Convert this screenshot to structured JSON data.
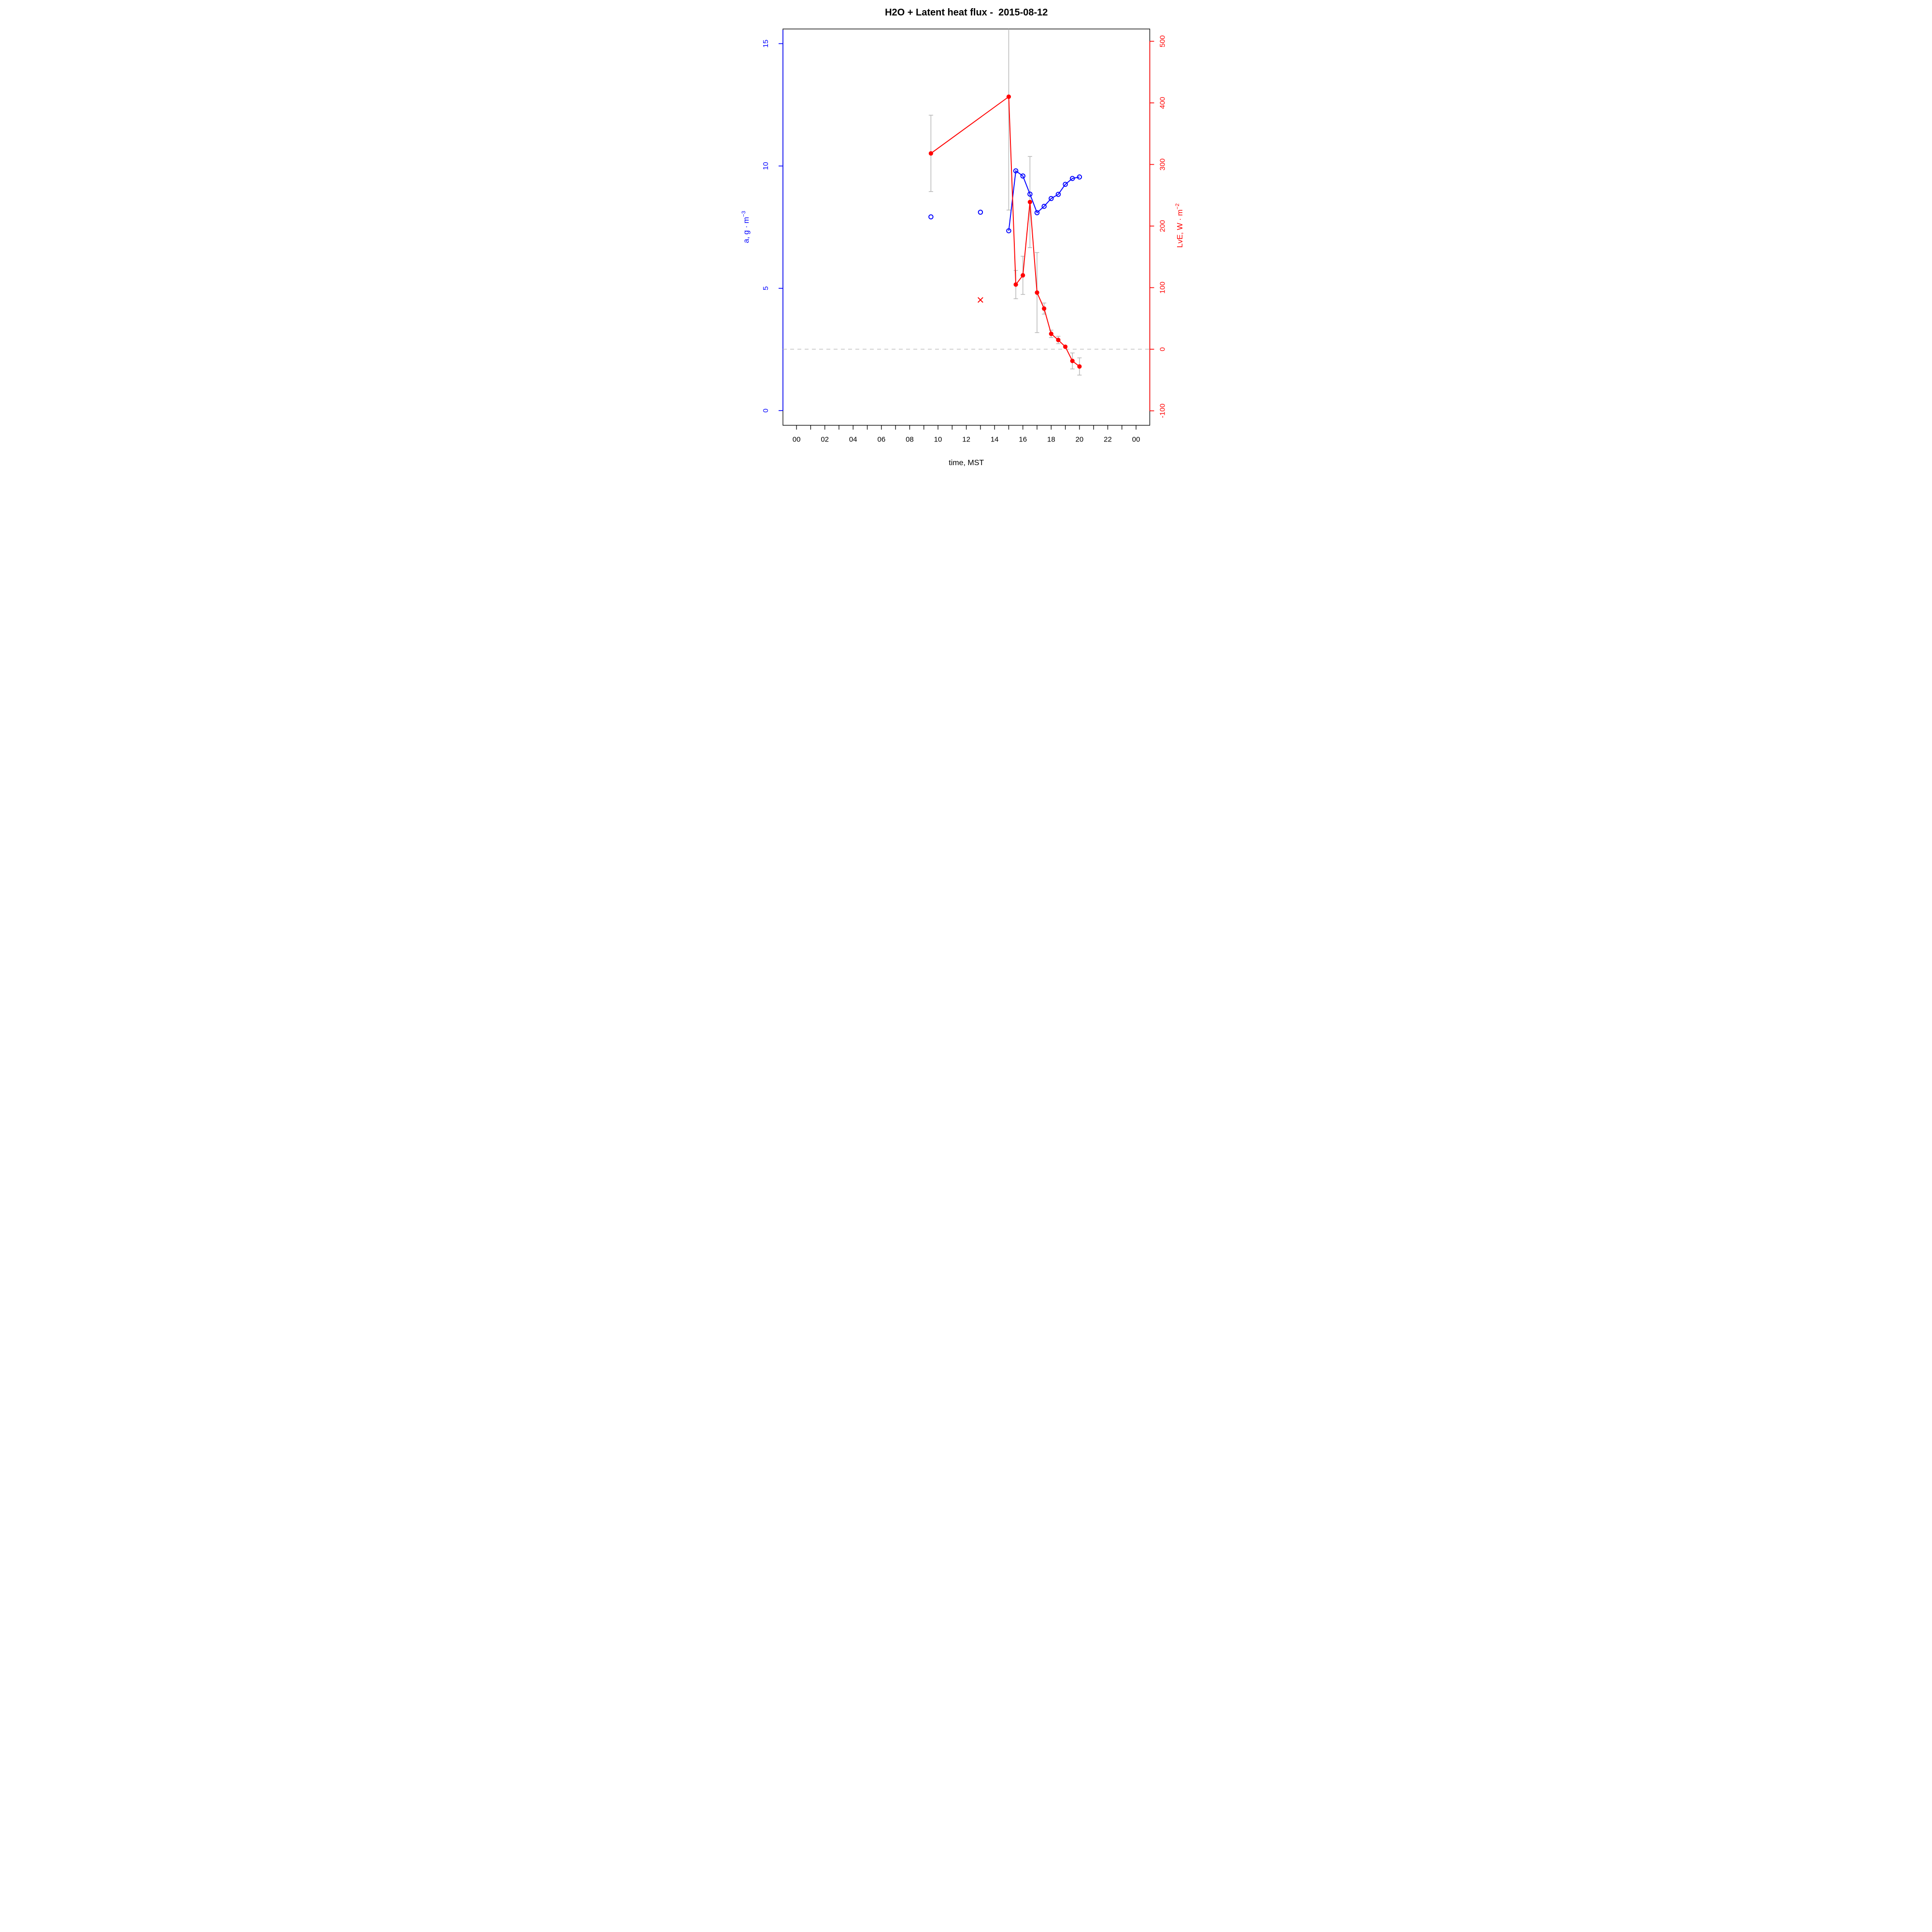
{
  "title": "H2O + Latent heat flux -  2015-08-12",
  "chart_data": {
    "type": "line",
    "title": "H2O + Latent heat flux -  2015-08-12",
    "x_axis": {
      "label": "time, MST",
      "range_hours": [
        -0.96,
        24.97
      ],
      "major_tick_hours": [
        0,
        2,
        4,
        6,
        8,
        10,
        12,
        14,
        16,
        18,
        20,
        22,
        24
      ],
      "major_tick_labels": [
        "00",
        "02",
        "04",
        "06",
        "08",
        "10",
        "12",
        "14",
        "16",
        "18",
        "20",
        "22",
        "00"
      ],
      "minor_tick_hours": [
        1,
        3,
        5,
        7,
        9,
        11,
        13,
        15,
        17,
        19,
        21,
        23
      ],
      "color": "#000000"
    },
    "y_left": {
      "label": "a, g · m⁻³",
      "label_text": "a, g · m",
      "label_sup": "−3",
      "range": [
        -0.6,
        15.6
      ],
      "ticks": [
        0,
        5,
        10,
        15
      ],
      "tick_labels": [
        "0",
        "5",
        "10",
        "15"
      ],
      "color": "#0000ff"
    },
    "y_right": {
      "label": "LvE, W · m⁻²",
      "label_text": "LvE, W · m",
      "label_sup": "−2",
      "range": [
        -123.5,
        520
      ],
      "ticks": [
        -100,
        0,
        100,
        200,
        300,
        400,
        500
      ],
      "tick_labels": [
        "-100",
        "0",
        "100",
        "200",
        "300",
        "400",
        "500"
      ],
      "color": "#ff0000"
    },
    "zero_line": {
      "axis": "right",
      "value": 0,
      "style": "dashed",
      "color": "#b9b9b9"
    },
    "error_bar_color": "#b4b4b4",
    "grid": "off",
    "legend": "none",
    "series": [
      {
        "name": "a_isolated",
        "axis": "left",
        "type": "scatter",
        "marker": "open-circle",
        "color": "#0000ff",
        "points": [
          {
            "h": 9.5,
            "v": 7.92
          },
          {
            "h": 13.0,
            "v": 8.11
          }
        ]
      },
      {
        "name": "a_series",
        "axis": "left",
        "type": "line+scatter",
        "marker": "open-circle",
        "color": "#0000ff",
        "points": [
          {
            "h": 15.0,
            "v": 7.35
          },
          {
            "h": 15.5,
            "v": 9.8
          },
          {
            "h": 16.0,
            "v": 9.59
          },
          {
            "h": 16.5,
            "v": 8.85
          },
          {
            "h": 17.0,
            "v": 8.09
          },
          {
            "h": 17.5,
            "v": 8.35
          },
          {
            "h": 18.0,
            "v": 8.67
          },
          {
            "h": 18.5,
            "v": 8.84
          },
          {
            "h": 19.0,
            "v": 9.25
          },
          {
            "h": 19.5,
            "v": 9.49
          },
          {
            "h": 20.0,
            "v": 9.55
          }
        ]
      },
      {
        "name": "LvE_series",
        "axis": "right",
        "type": "line+scatter",
        "marker": "filled-circle",
        "color": "#ff0000",
        "points": [
          {
            "h": 9.5,
            "v": 318,
            "err": 62
          },
          {
            "h": 15.0,
            "v": 410,
            "err": 184
          },
          {
            "h": 15.5,
            "v": 105,
            "err": 23
          },
          {
            "h": 16.0,
            "v": 120,
            "err": 31
          },
          {
            "h": 16.5,
            "v": 239,
            "err": 74
          },
          {
            "h": 17.0,
            "v": 92,
            "err": 65
          },
          {
            "h": 17.5,
            "v": 66,
            "err": 9
          },
          {
            "h": 18.0,
            "v": 25,
            "err": 6
          },
          {
            "h": 18.5,
            "v": 15,
            "err": 6
          },
          {
            "h": 19.0,
            "v": 4,
            "err": null
          },
          {
            "h": 19.5,
            "v": -19,
            "err": 13
          },
          {
            "h": 20.0,
            "v": -28,
            "err": 14
          }
        ]
      },
      {
        "name": "LvE_outlier",
        "axis": "right",
        "type": "scatter",
        "marker": "x-cross",
        "color": "#ff0000",
        "points": [
          {
            "h": 13.0,
            "v": 80
          }
        ]
      }
    ]
  }
}
